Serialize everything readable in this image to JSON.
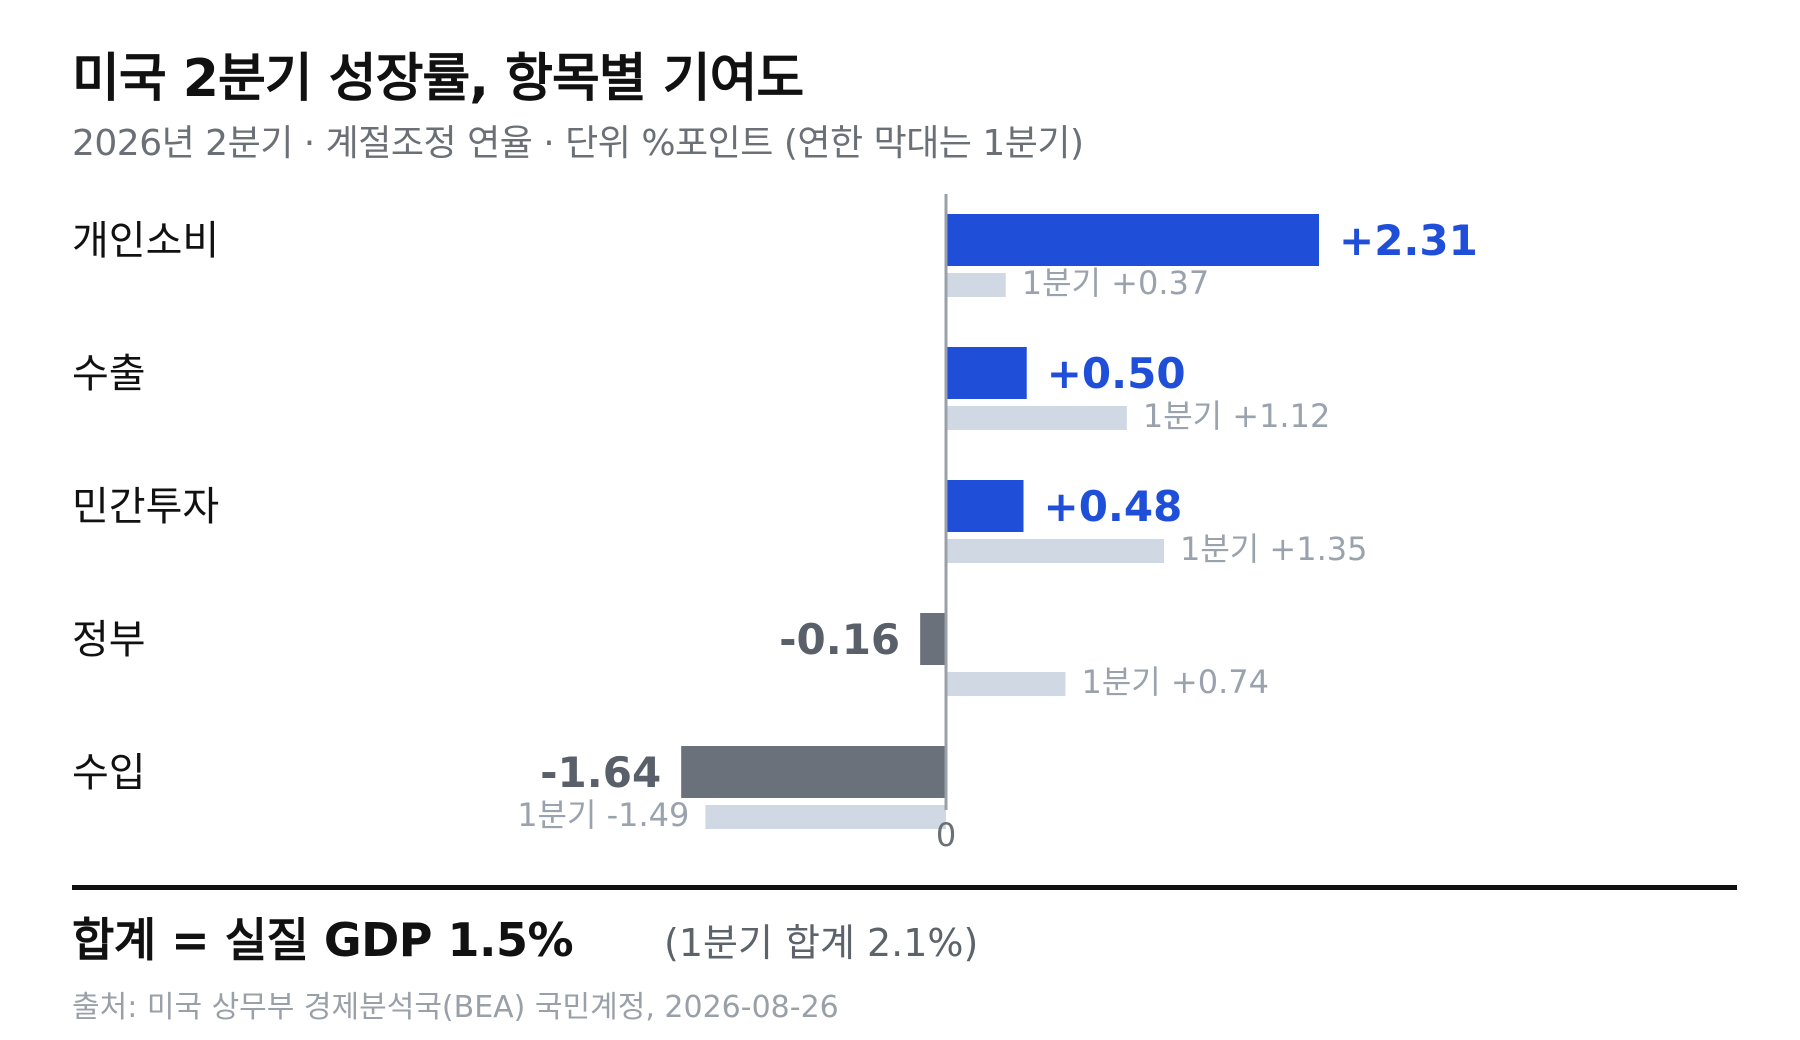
{
  "title": "미국 2분기 성장률, 항목별 기여도",
  "subtitle": "2026년 2분기 · 계절조정 연율 · 단위 %포인트 (연한 막대는 1분기)",
  "colors": {
    "positive": "#1f4fd8",
    "negative": "#6b717b",
    "previous": "#cfd8e3",
    "previous_text": "#9aa3ad",
    "axis": "#9aa0a8"
  },
  "chart_data": {
    "type": "bar",
    "orientation": "horizontal",
    "categories": [
      "개인소비",
      "수출",
      "민간투자",
      "정부",
      "수입"
    ],
    "series": [
      {
        "values": [
          2.31,
          0.5,
          0.48,
          -0.16,
          -1.64
        ],
        "labels": [
          "+2.31",
          "+0.50",
          "+0.48",
          "-0.16",
          "-1.64"
        ]
      },
      {
        "values": [
          0.37,
          1.12,
          1.35,
          0.74,
          -1.49
        ],
        "labels": [
          "1분기 +0.37",
          "1분기 +1.12",
          "1분기 +1.35",
          "1분기 +0.74",
          "1분기 -1.49"
        ]
      }
    ],
    "zero_label": "0",
    "xlim": [
      -2.16,
      4.2
    ],
    "grid": false
  },
  "total": {
    "label": "합계 = 실질 GDP 1.5%",
    "previous": "(1분기 합계 2.1%)"
  },
  "source": "출처: 미국 상무부 경제분석국(BEA) 국민계정, 2026-08-26"
}
